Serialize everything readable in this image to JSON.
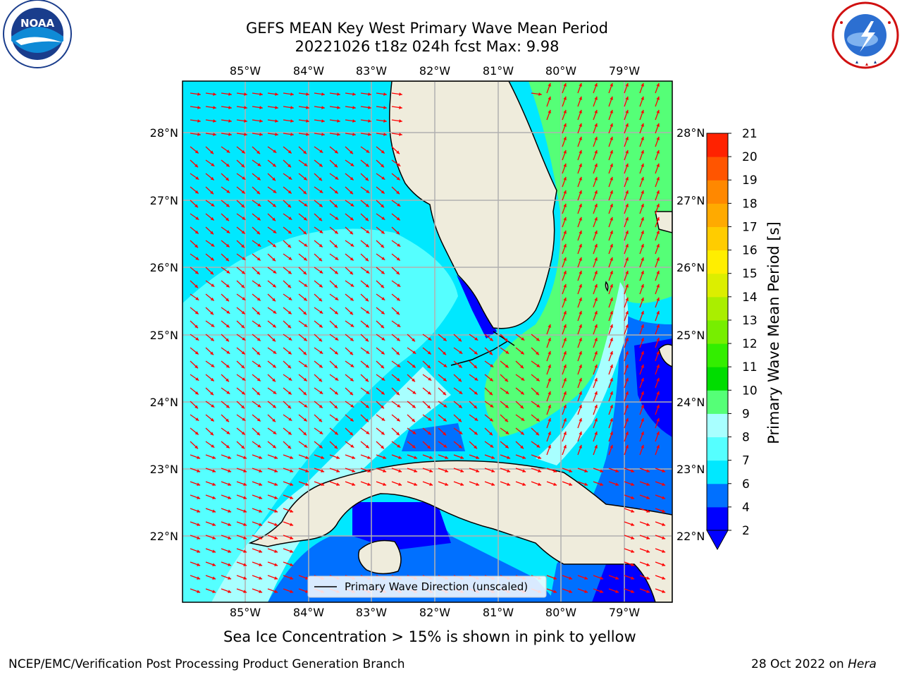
{
  "header": {
    "title_line1": "GEFS MEAN Key West Primary Wave Mean Period",
    "title_line2": "20221026 t18z 024h fcst   Max: 9.98"
  },
  "logos": {
    "left": {
      "name": "NOAA",
      "text": "NOAA",
      "ring_text": "NATIONAL OCEANIC AND ATMOSPHERIC ADMINISTRATION · U.S. DEPARTMENT OF COMMERCE"
    },
    "right": {
      "name": "National Weather Service",
      "ring_text": "NATIONAL WEATHER SERVICE"
    }
  },
  "map": {
    "lon_labels": [
      "85°W",
      "84°W",
      "83°W",
      "82°W",
      "81°W",
      "80°W",
      "79°W"
    ],
    "lat_labels": [
      "28°N",
      "27°N",
      "26°N",
      "25°N",
      "24°N",
      "23°N",
      "22°N"
    ],
    "legend_label": "Primary Wave Direction (unscaled)"
  },
  "colorbar": {
    "label": "Primary Wave Mean Period [s]",
    "ticks": [
      "2",
      "4",
      "6",
      "7",
      "8",
      "9",
      "10",
      "11",
      "12",
      "13",
      "14",
      "15",
      "16",
      "17",
      "18",
      "19",
      "20",
      "21"
    ],
    "colors": [
      "#0000ff",
      "#0070ff",
      "#00e8ff",
      "#55ffff",
      "#a8ffff",
      "#55ff77",
      "#00dd00",
      "#33ee00",
      "#77ee00",
      "#aaee00",
      "#dcee00",
      "#ffee00",
      "#ffcc00",
      "#ffaa00",
      "#ff8800",
      "#ff5500",
      "#ff2200"
    ],
    "under_color": "#0000ff"
  },
  "captions": {
    "ice_note": "Sea Ice Concentration > 15% is shown in pink to yellow",
    "footer_left": "NCEP/EMC/Verification Post Processing Product Generation Branch",
    "footer_date": "28 Oct 2022 on",
    "footer_host": "Hera"
  },
  "colors": {
    "land": "#efecdc",
    "arrow": "#ff0000",
    "grid": "#b0b0b0"
  }
}
